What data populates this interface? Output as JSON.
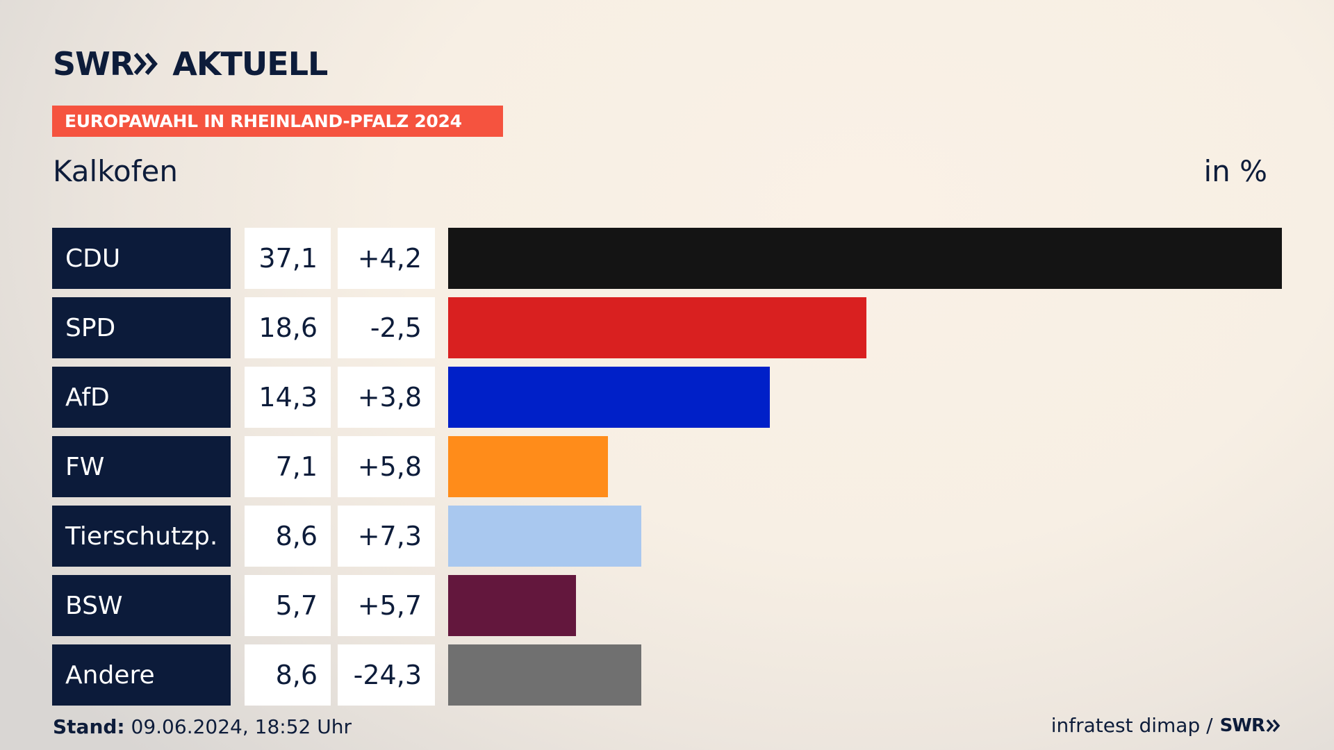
{
  "header": {
    "logo_text": "SWR",
    "logo_chevrons": "»",
    "logo_sub": "AKTUELL",
    "banner": "EUROPAWAHL IN RHEINLAND-PFALZ 2024",
    "place": "Kalkofen",
    "unit": "in %"
  },
  "footer": {
    "stand_label": "Stand:",
    "stand_value": "09.06.2024, 18:52 Uhr",
    "source": "infratest dimap /",
    "brand": "SWR",
    "brand_chevrons": "»"
  },
  "chart_data": {
    "type": "bar",
    "orientation": "horizontal",
    "categories": [
      "CDU",
      "SPD",
      "AfD",
      "FW",
      "Tierschutzp.",
      "BSW",
      "Andere"
    ],
    "values": [
      37.1,
      18.6,
      14.3,
      7.1,
      8.6,
      5.7,
      8.6
    ],
    "value_labels": [
      "37,1",
      "18,6",
      "14,3",
      "7,1",
      "8,6",
      "5,7",
      "8,6"
    ],
    "changes": [
      "+4,2",
      "-2,5",
      "+3,8",
      "+5,8",
      "+7,3",
      "+5,7",
      "-24,3"
    ],
    "colors": [
      "#141414",
      "#d92020",
      "#0020c8",
      "#ff8c1a",
      "#a9c8ef",
      "#63173d",
      "#707070"
    ],
    "xlim": [
      0,
      37.1
    ]
  }
}
